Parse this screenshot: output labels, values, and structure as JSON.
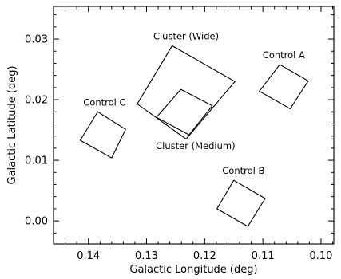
{
  "chart_data": {
    "type": "scatter",
    "xlabel": "Galactic Longitude (deg)",
    "ylabel": "Galactic Latitude (deg)",
    "xlim": [
      0.146,
      0.0978
    ],
    "ylim": [
      -0.0038,
      0.0354
    ],
    "x_reversed": true,
    "grid": false,
    "x_ticks": [
      0.14,
      0.13,
      0.12,
      0.11,
      0.1
    ],
    "x_tick_labels": [
      "0.14",
      "0.13",
      "0.12",
      "0.11",
      "0.10"
    ],
    "y_ticks": [
      0.0,
      0.01,
      0.02,
      0.03
    ],
    "y_tick_labels": [
      "0.00",
      "0.01",
      "0.02",
      "0.03"
    ],
    "regions": [
      {
        "label": "Cluster (Wide)",
        "vertices": [
          [
            0.1256,
            0.0289
          ],
          [
            0.1148,
            0.023
          ],
          [
            0.1232,
            0.0135
          ],
          [
            0.1316,
            0.0193
          ]
        ]
      },
      {
        "label": "Cluster (Medium)",
        "vertices": [
          [
            0.1241,
            0.0217
          ],
          [
            0.1187,
            0.019
          ],
          [
            0.1227,
            0.0142
          ],
          [
            0.1283,
            0.0171
          ]
        ]
      },
      {
        "label": "Control A",
        "vertices": [
          [
            0.1071,
            0.0258
          ],
          [
            0.1022,
            0.0231
          ],
          [
            0.1053,
            0.0185
          ],
          [
            0.1106,
            0.0214
          ]
        ]
      },
      {
        "label": "Control B",
        "vertices": [
          [
            0.115,
            0.0067
          ],
          [
            0.1096,
            0.0037
          ],
          [
            0.1126,
            -0.0009
          ],
          [
            0.1179,
            0.002
          ]
        ]
      },
      {
        "label": "Control C",
        "vertices": [
          [
            0.1384,
            0.018
          ],
          [
            0.1336,
            0.0151
          ],
          [
            0.136,
            0.0104
          ],
          [
            0.1414,
            0.0133
          ]
        ]
      }
    ]
  }
}
